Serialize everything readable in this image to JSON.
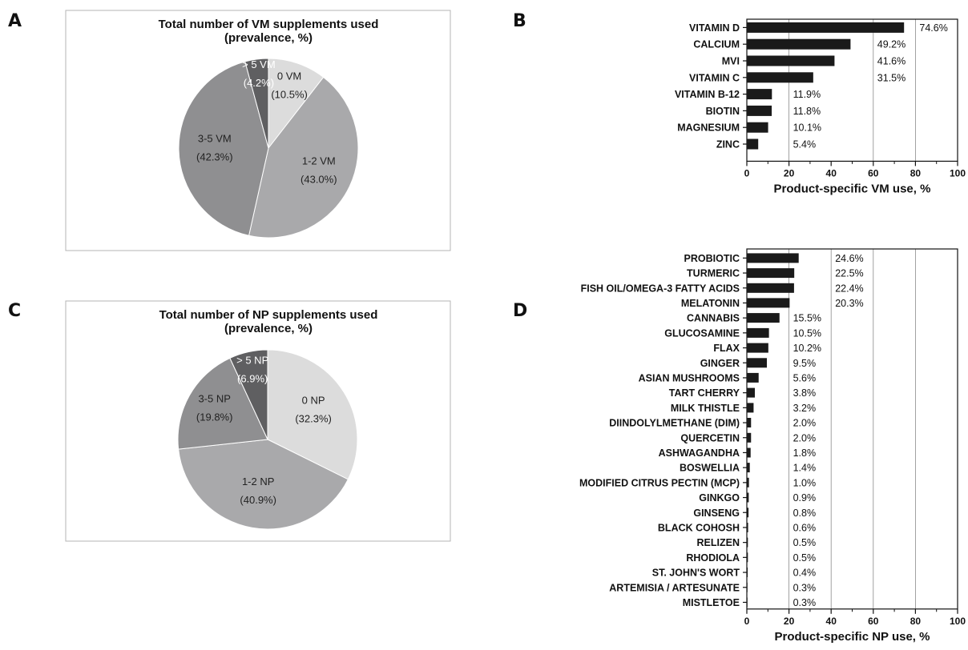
{
  "panel_letters": {
    "a": "A",
    "b": "B",
    "c": "C",
    "d": "D"
  },
  "chart_data": [
    {
      "id": "A",
      "type": "pie",
      "title": "Total number of VM supplements used",
      "subtitle": "(prevalence, %)",
      "slices": [
        {
          "name": "0 VM",
          "value": 10.5,
          "pct_label": "(10.5%)",
          "color": "#dcdcdc",
          "text_color": "#222222"
        },
        {
          "name": "1-2 VM",
          "value": 43.0,
          "pct_label": "(43.0%)",
          "color": "#a9a9ab",
          "text_color": "#222222"
        },
        {
          "name": "3-5 VM",
          "value": 42.3,
          "pct_label": "(42.3%)",
          "color": "#8f8f91",
          "text_color": "#222222"
        },
        {
          "name": "> 5 VM",
          "value": 4.2,
          "pct_label": "(4.2%)",
          "color": "#5f5f61",
          "text_color": "#ffffff"
        }
      ]
    },
    {
      "id": "B",
      "type": "bar",
      "orientation": "horizontal",
      "categories": [
        "VITAMIN D",
        "CALCIUM",
        "MVI",
        "VITAMIN C",
        "VITAMIN B-12",
        "BIOTIN",
        "MAGNESIUM",
        "ZINC"
      ],
      "values": [
        74.6,
        49.2,
        41.6,
        31.5,
        11.9,
        11.8,
        10.1,
        5.4
      ],
      "value_labels": [
        "74.6%",
        "49.2%",
        "41.6%",
        "31.5%",
        "11.9%",
        "11.8%",
        "10.1%",
        "5.4%"
      ],
      "xlabel": "Product-specific VM use, %",
      "xlim": [
        0,
        100
      ],
      "xticks": [
        "0",
        "20",
        "40",
        "60",
        "80",
        "100"
      ],
      "gridlines": [
        20,
        60,
        80
      ],
      "bar_color": "#1a1a1a"
    },
    {
      "id": "C",
      "type": "pie",
      "title": "Total number of NP supplements used",
      "subtitle": "(prevalence, %)",
      "slices": [
        {
          "name": "0 NP",
          "value": 32.3,
          "pct_label": "(32.3%)",
          "color": "#dcdcdc",
          "text_color": "#222222"
        },
        {
          "name": "1-2 NP",
          "value": 40.9,
          "pct_label": "(40.9%)",
          "color": "#a9a9ab",
          "text_color": "#222222"
        },
        {
          "name": "3-5 NP",
          "value": 19.8,
          "pct_label": "(19.8%)",
          "color": "#8f8f91",
          "text_color": "#222222"
        },
        {
          "name": "> 5 NP",
          "value": 6.9,
          "pct_label": "(6.9%)",
          "color": "#5f5f61",
          "text_color": "#ffffff"
        }
      ]
    },
    {
      "id": "D",
      "type": "bar",
      "orientation": "horizontal",
      "categories": [
        "PROBIOTIC",
        "TURMERIC",
        "FISH OIL/OMEGA-3 FATTY ACIDS",
        "MELATONIN",
        "CANNABIS",
        "GLUCOSAMINE",
        "FLAX",
        "GINGER",
        "ASIAN MUSHROOMS",
        "TART CHERRY",
        "MILK THISTLE",
        "DIINDOLYLMETHANE (DIM)",
        "QUERCETIN",
        "ASHWAGANDHA",
        "BOSWELLIA",
        "MODIFIED CITRUS PECTIN (MCP)",
        "GINKGO",
        "GINSENG",
        "BLACK COHOSH",
        "RELIZEN",
        "RHODIOLA",
        "ST. JOHN'S WORT",
        "ARTEMISIA / ARTESUNATE",
        "MISTLETOE"
      ],
      "values": [
        24.6,
        22.5,
        22.4,
        20.3,
        15.5,
        10.5,
        10.2,
        9.5,
        5.6,
        3.8,
        3.2,
        2.0,
        2.0,
        1.8,
        1.4,
        1.0,
        0.9,
        0.8,
        0.6,
        0.5,
        0.5,
        0.4,
        0.3,
        0.3
      ],
      "value_labels": [
        "24.6%",
        "22.5%",
        "22.4%",
        "20.3%",
        "15.5%",
        "10.5%",
        "10.2%",
        "9.5%",
        "5.6%",
        "3.8%",
        "3.2%",
        "2.0%",
        "2.0%",
        "1.8%",
        "1.4%",
        "1.0%",
        "0.9%",
        "0.8%",
        "0.6%",
        "0.5%",
        "0.5%",
        "0.4%",
        "0.3%",
        "0.3%"
      ],
      "xlabel": "Product-specific NP use, %",
      "xlim": [
        0,
        100
      ],
      "xticks": [
        "0",
        "20",
        "40",
        "60",
        "80",
        "100"
      ],
      "gridlines": [
        20,
        40,
        60,
        80
      ],
      "bar_color": "#1a1a1a"
    }
  ]
}
